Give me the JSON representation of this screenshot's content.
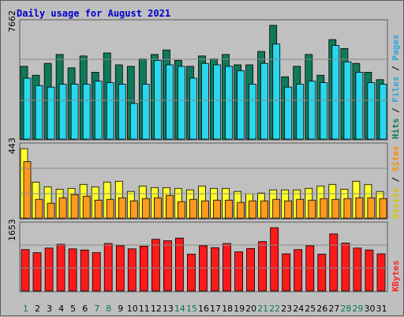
{
  "title": "Daily usage for August 2021",
  "colors": {
    "background": "#bfbfbf",
    "title": "#0000cc",
    "hits_fill": "#0f7a5a",
    "files_fill": "#2ad7ee",
    "visits_fill": "#ffff2a",
    "sites_fill": "#ff9a1e",
    "kbytes_fill": "#ff1a1a",
    "weekend_label": "#0b7a4a",
    "weekday_label": "#000000"
  },
  "legend": {
    "top": [
      {
        "text": "Hits",
        "color": "#0b7a4a"
      },
      {
        "text": " / ",
        "color": "#000000"
      },
      {
        "text": "Files",
        "color": "#2aa7dd"
      },
      {
        "text": " / ",
        "color": "#000000"
      },
      {
        "text": "Pages",
        "color": "#2aa7dd"
      }
    ],
    "mid": [
      {
        "text": "Visits",
        "color": "#d8c400"
      },
      {
        "text": " / ",
        "color": "#000000"
      },
      {
        "text": "Sites",
        "color": "#ff8c00"
      }
    ],
    "bottom": [
      {
        "text": "KBytes",
        "color": "#ff2020"
      }
    ]
  },
  "chart_data": {
    "type": "bar",
    "title": "Daily usage for August 2021",
    "x": [
      "1",
      "2",
      "3",
      "4",
      "5",
      "6",
      "7",
      "8",
      "9",
      "10",
      "11",
      "12",
      "13",
      "14",
      "15",
      "16",
      "17",
      "18",
      "19",
      "20",
      "21",
      "22",
      "23",
      "24",
      "25",
      "26",
      "27",
      "28",
      "29",
      "30",
      "31"
    ],
    "weekend_days": [
      "1",
      "7",
      "8",
      "14",
      "15",
      "21",
      "22",
      "28",
      "29"
    ],
    "panels": [
      {
        "id": "top",
        "max_label": "7662",
        "ylim": [
          0,
          7662
        ],
        "series": [
          {
            "name": "Hits",
            "values": [
              4900,
              4300,
              5100,
              5700,
              4800,
              5600,
              4500,
              5800,
              5000,
              4900,
              5400,
              5700,
              6000,
              5300,
              4900,
              5600,
              5400,
              5700,
              5000,
              5000,
              5900,
              7662,
              4200,
              4900,
              5700,
              4300,
              6700,
              6100,
              5100,
              4500,
              4000
            ]
          },
          {
            "name": "Files",
            "values": [
              4100,
              3600,
              3500,
              3700,
              3700,
              3700,
              3900,
              3800,
              3700,
              2400,
              3700,
              5300,
              5000,
              4900,
              4100,
              5100,
              5000,
              4900,
              4600,
              3700,
              5100,
              6400,
              3500,
              3700,
              3900,
              3800,
              6300,
              5200,
              4500,
              3800,
              3700
            ]
          }
        ]
      },
      {
        "id": "mid",
        "max_label": "443",
        "ylim": [
          0,
          443
        ],
        "series": [
          {
            "name": "Visits",
            "values": [
              443,
              230,
              200,
              185,
              190,
              215,
              200,
              230,
              235,
              170,
              205,
              195,
              195,
              190,
              180,
              205,
              190,
              190,
              170,
              155,
              160,
              180,
              180,
              180,
              190,
              205,
              215,
              185,
              235,
              215,
              170
            ]
          },
          {
            "name": "Sites",
            "values": [
              360,
              120,
              95,
              130,
              150,
              140,
              115,
              120,
              130,
              110,
              125,
              130,
              145,
              105,
              120,
              110,
              115,
              115,
              100,
              110,
              110,
              120,
              110,
              120,
              115,
              125,
              120,
              125,
              130,
              130,
              125
            ]
          }
        ]
      },
      {
        "id": "bottom",
        "max_label": "1653",
        "ylim": [
          0,
          1653
        ],
        "series": [
          {
            "name": "KBytes",
            "values": [
              1080,
              1000,
              1120,
              1220,
              1100,
              1070,
              1000,
              1240,
              1180,
              1100,
              1170,
              1350,
              1310,
              1380,
              960,
              1180,
              1130,
              1240,
              1020,
              1110,
              1290,
              1653,
              970,
              1080,
              1180,
              960,
              1490,
              1250,
              1120,
              1070,
              970
            ]
          }
        ]
      }
    ]
  }
}
